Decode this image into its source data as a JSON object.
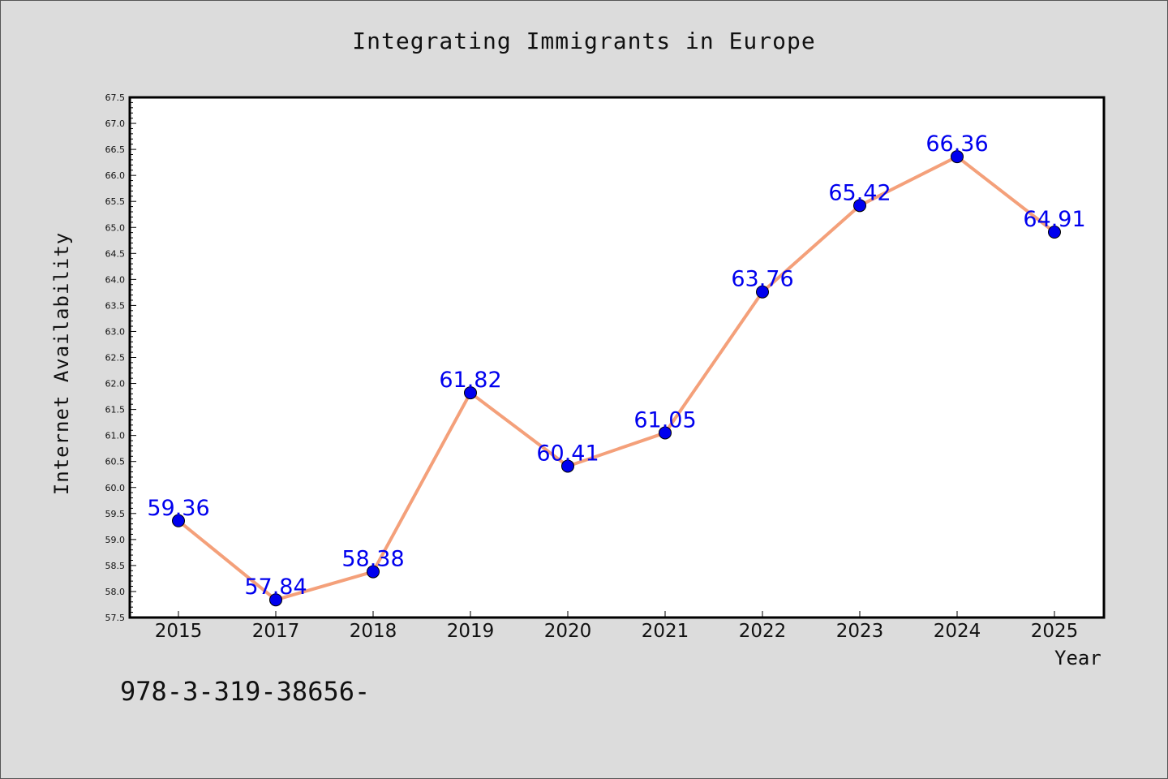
{
  "chart_data": {
    "type": "line",
    "title": "Integrating Immigrants in Europe",
    "xlabel": "Year",
    "ylabel": "Internet Availability",
    "categories": [
      "2015",
      "2017",
      "2018",
      "2019",
      "2020",
      "2021",
      "2022",
      "2023",
      "2024",
      "2025"
    ],
    "series": [
      {
        "values": [
          59.36,
          57.84,
          58.38,
          61.82,
          60.41,
          61.05,
          63.76,
          65.42,
          66.36,
          64.91
        ],
        "labels": [
          "59.36",
          "57.84",
          "58.38",
          "61.82",
          "60.41",
          "61.05",
          "63.76",
          "65.42",
          "66.36",
          "64.91"
        ],
        "line_color": "#f4a07a",
        "marker_color": "#0000ee"
      }
    ],
    "ylim": [
      57.5,
      67.5
    ],
    "yticks": [
      "57.5",
      "58.0",
      "58.5",
      "59.0",
      "59.5",
      "60.0",
      "60.5",
      "61.0",
      "61.5",
      "62.0",
      "62.5",
      "63.0",
      "63.5",
      "64.0",
      "64.5",
      "65.0",
      "65.5",
      "66.0",
      "66.5",
      "67.0",
      "67.5"
    ],
    "grid": false,
    "legend": "none"
  },
  "footer_text": "978-3-319-38656-"
}
